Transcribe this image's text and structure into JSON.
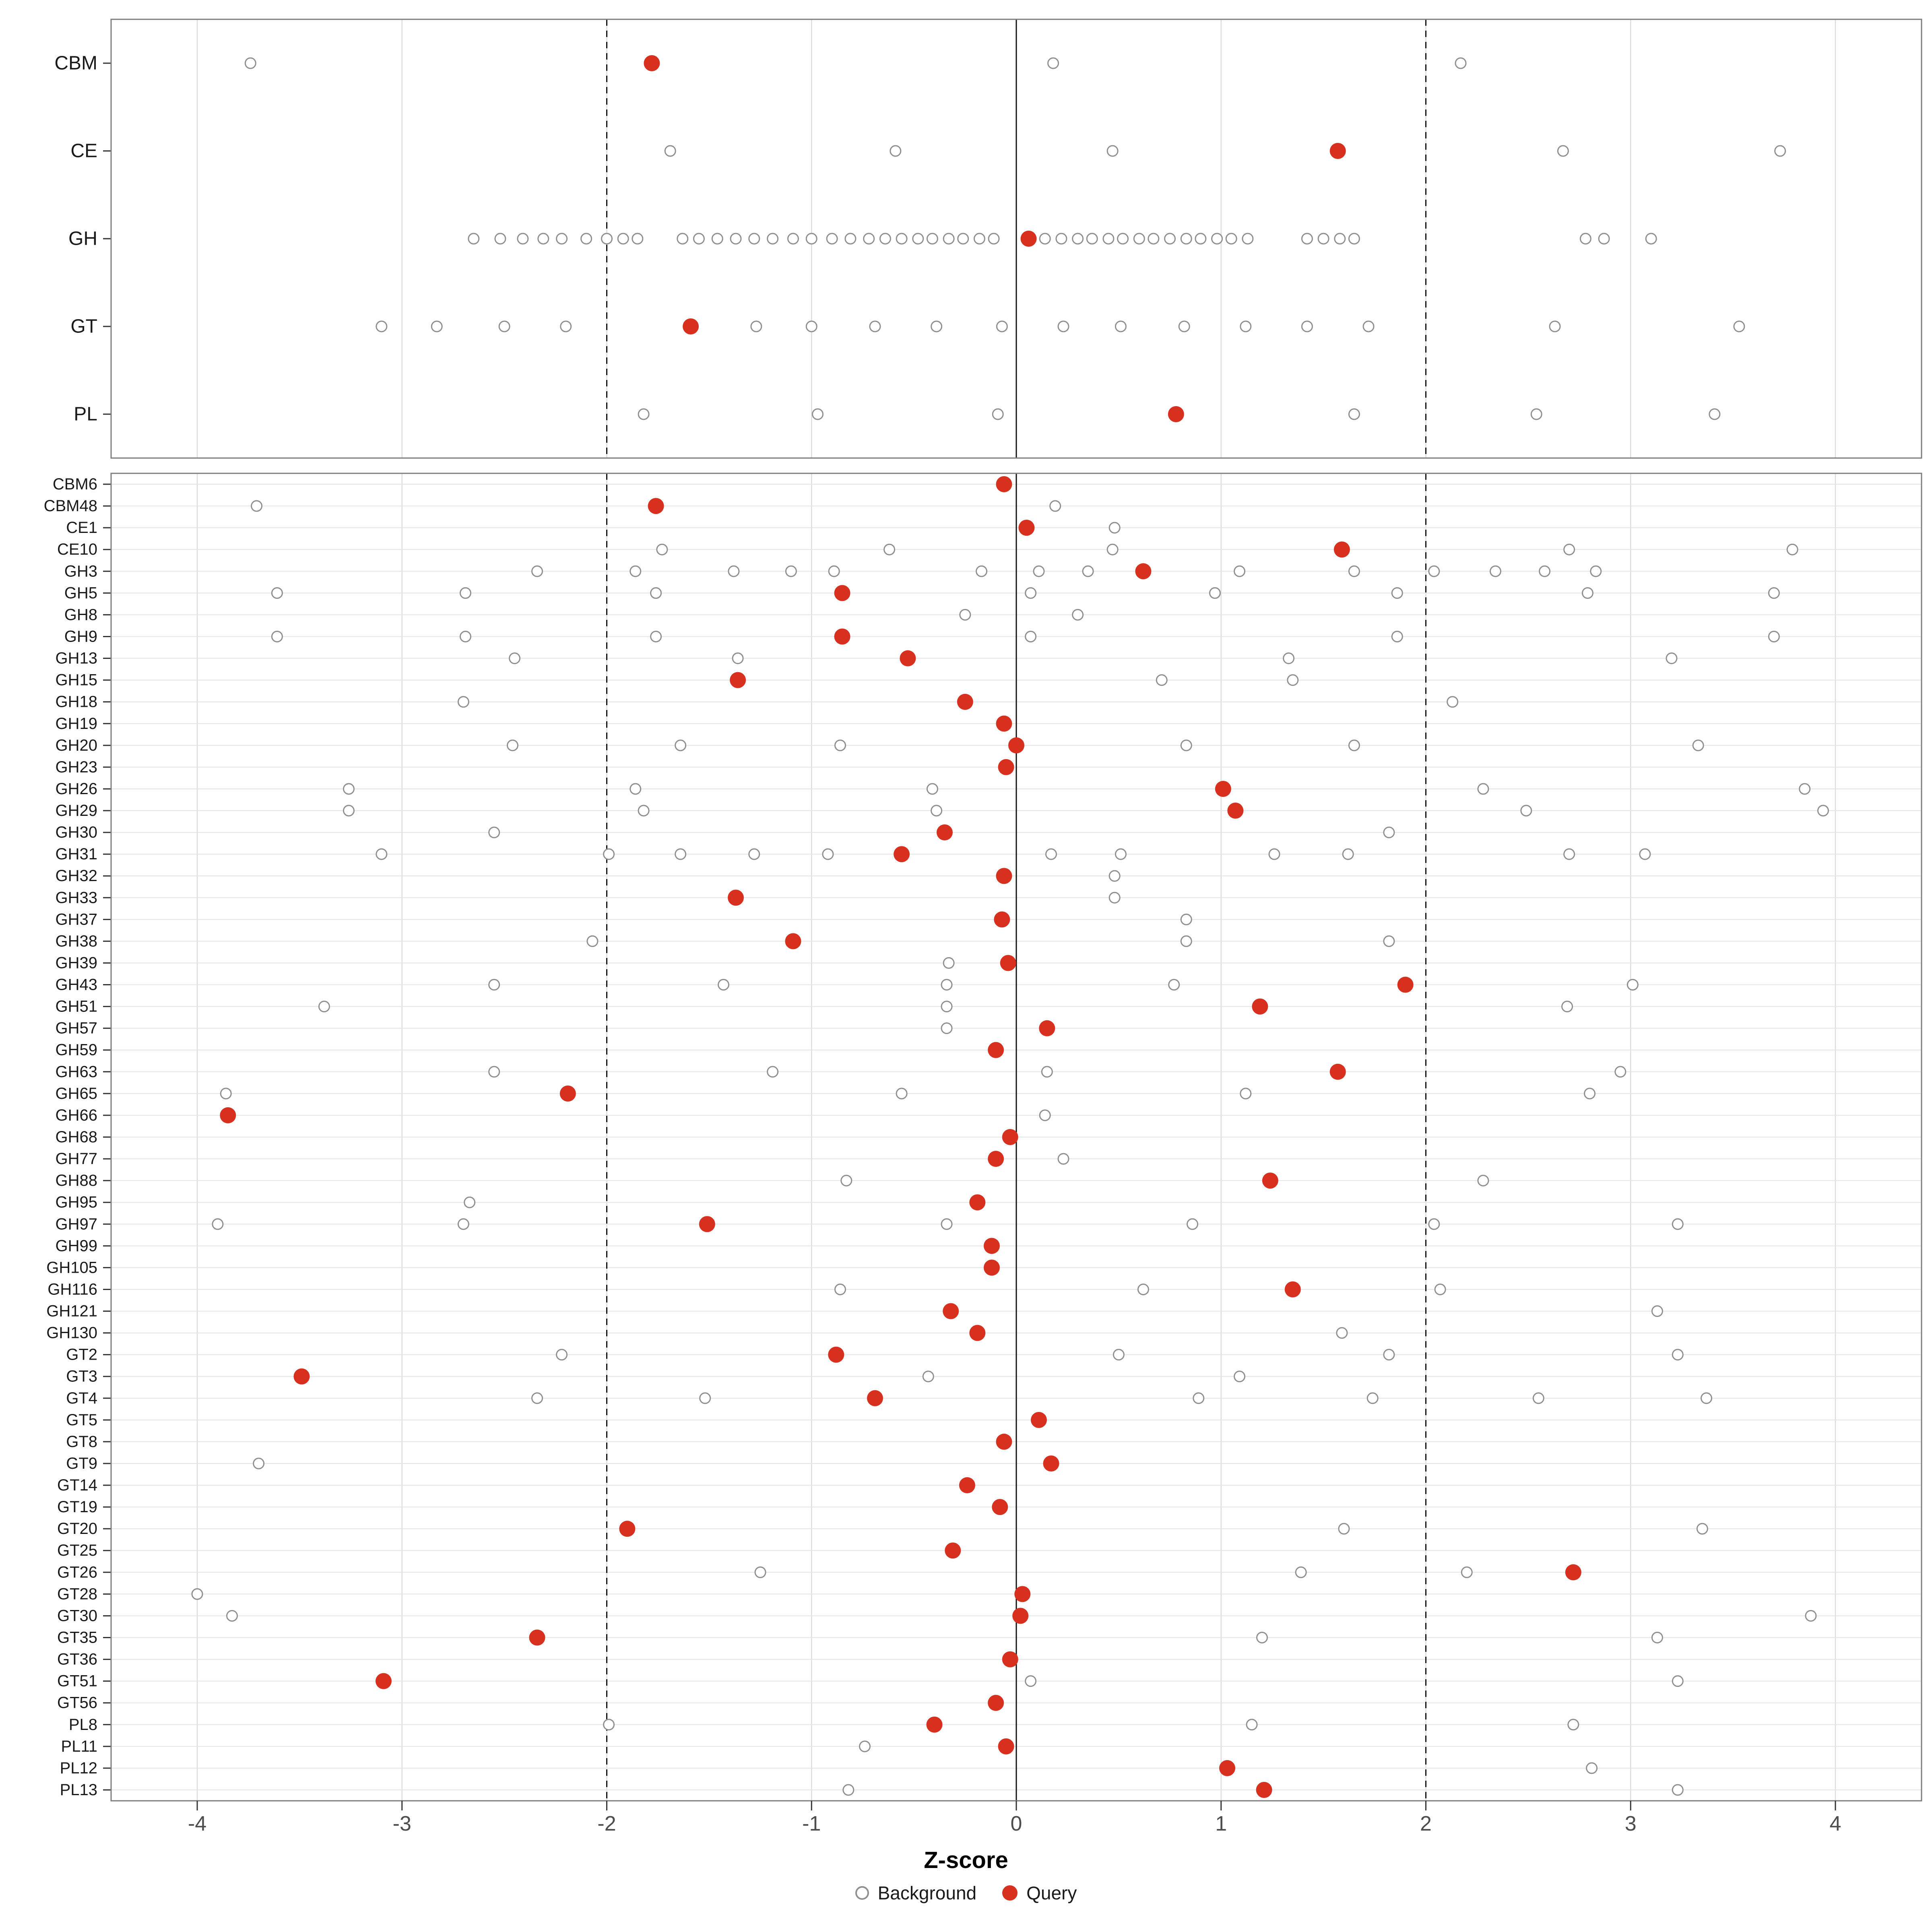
{
  "chart_data": {
    "type": "scatter",
    "title": "",
    "xlabel": "Z-score",
    "ylabel": "",
    "xlim": [
      -4.42,
      4.42
    ],
    "x_ticks": [
      -4,
      -3,
      -2,
      -1,
      0,
      1,
      2,
      3,
      4
    ],
    "x_tick_labels": [
      "-4",
      "-3",
      "-2",
      "-1",
      "0",
      "1",
      "2",
      "3",
      "4"
    ],
    "grid": true,
    "legend_position": "bottom",
    "reference_lines": {
      "solid": [
        0
      ],
      "dashed": [
        -2,
        2
      ]
    },
    "legend": [
      {
        "label": "Background",
        "style": "open-circle"
      },
      {
        "label": "Query",
        "style": "filled-circle"
      }
    ],
    "colors": {
      "query": "#d7301f",
      "background_stroke": "#8f8f8f",
      "grid": "#dcdcdc",
      "panel_border": "#7d7d7d"
    },
    "panels": [
      {
        "name": "family-class-summary",
        "rows": [
          {
            "label": "CBM",
            "query": -1.78,
            "background": [
              -3.74,
              0.18,
              2.17
            ]
          },
          {
            "label": "CE",
            "query": 1.57,
            "background": [
              -1.69,
              -0.59,
              0.47,
              2.67,
              3.73
            ]
          },
          {
            "label": "GH",
            "query": 0.06,
            "background": [
              -2.65,
              -2.52,
              -2.41,
              -2.31,
              -2.22,
              -2.1,
              -2.0,
              -1.92,
              -1.85,
              -1.63,
              -1.55,
              -1.46,
              -1.37,
              -1.28,
              -1.19,
              -1.09,
              -1.0,
              -0.9,
              -0.81,
              -0.72,
              -0.64,
              -0.56,
              -0.48,
              -0.41,
              -0.33,
              -0.26,
              -0.18,
              -0.11,
              0.14,
              0.22,
              0.3,
              0.37,
              0.45,
              0.52,
              0.6,
              0.67,
              0.75,
              0.83,
              0.9,
              0.98,
              1.05,
              1.13,
              1.42,
              1.5,
              1.58,
              1.65,
              2.78,
              2.87,
              3.1
            ]
          },
          {
            "label": "GT",
            "query": -1.59,
            "background": [
              -3.1,
              -2.83,
              -2.5,
              -2.2,
              -1.27,
              -1.0,
              -0.69,
              -0.39,
              -0.07,
              0.23,
              0.51,
              0.82,
              1.12,
              1.42,
              1.72,
              2.63,
              3.53
            ]
          },
          {
            "label": "PL",
            "query": 0.78,
            "background": [
              -1.82,
              -0.97,
              -0.09,
              1.65,
              2.54,
              3.41
            ]
          }
        ]
      },
      {
        "name": "family-detail",
        "rows": [
          {
            "label": "CBM6",
            "query": -0.06,
            "background": []
          },
          {
            "label": "CBM48",
            "query": -1.76,
            "background": [
              -3.71,
              0.19
            ]
          },
          {
            "label": "CE1",
            "query": 0.05,
            "background": [
              0.48
            ]
          },
          {
            "label": "CE10",
            "query": 1.59,
            "background": [
              -1.73,
              -0.62,
              0.47,
              2.7,
              3.79
            ]
          },
          {
            "label": "GH3",
            "query": 0.62,
            "background": [
              -2.34,
              -1.86,
              -1.38,
              -1.1,
              -0.89,
              -0.17,
              0.11,
              0.35,
              1.09,
              1.65,
              2.04,
              2.34,
              2.58,
              2.83
            ]
          },
          {
            "label": "GH5",
            "query": -0.85,
            "background": [
              -3.61,
              -2.69,
              -1.76,
              0.07,
              0.97,
              1.86,
              2.79,
              3.7
            ]
          },
          {
            "label": "GH8",
            "query": null,
            "background": [
              -0.25,
              0.3
            ]
          },
          {
            "label": "GH9",
            "query": -0.85,
            "background": [
              -3.61,
              -2.69,
              -1.76,
              0.07,
              1.86,
              3.7
            ]
          },
          {
            "label": "GH13",
            "query": -0.53,
            "background": [
              -2.45,
              -1.36,
              1.33,
              3.2
            ]
          },
          {
            "label": "GH15",
            "query": -1.36,
            "background": [
              0.71,
              1.35
            ]
          },
          {
            "label": "GH18",
            "query": -0.25,
            "background": [
              -2.7,
              2.13
            ]
          },
          {
            "label": "GH19",
            "query": -0.06,
            "background": []
          },
          {
            "label": "GH20",
            "query": 0.0,
            "background": [
              -2.46,
              -1.64,
              -0.86,
              0.83,
              1.65,
              3.33
            ]
          },
          {
            "label": "GH23",
            "query": -0.05,
            "background": []
          },
          {
            "label": "GH26",
            "query": 1.01,
            "background": [
              -3.26,
              -1.86,
              -0.41,
              2.28,
              3.85
            ]
          },
          {
            "label": "GH29",
            "query": 1.07,
            "background": [
              -3.26,
              -1.82,
              -0.39,
              2.49,
              3.94
            ]
          },
          {
            "label": "GH30",
            "query": -0.35,
            "background": [
              -2.55,
              1.82
            ]
          },
          {
            "label": "GH31",
            "query": -0.56,
            "background": [
              -3.1,
              -1.99,
              -1.64,
              -1.28,
              -0.92,
              0.17,
              0.51,
              1.26,
              1.62,
              2.7,
              3.07
            ]
          },
          {
            "label": "GH32",
            "query": -0.06,
            "background": [
              0.48
            ]
          },
          {
            "label": "GH33",
            "query": -1.37,
            "background": [
              0.48
            ]
          },
          {
            "label": "GH37",
            "query": -0.07,
            "background": [
              0.83
            ]
          },
          {
            "label": "GH38",
            "query": -1.09,
            "background": [
              -2.07,
              0.83,
              1.82
            ]
          },
          {
            "label": "GH39",
            "query": -0.04,
            "background": [
              -0.33
            ]
          },
          {
            "label": "GH43",
            "query": 1.9,
            "background": [
              -2.55,
              -1.43,
              -0.34,
              0.77,
              3.01
            ]
          },
          {
            "label": "GH51",
            "query": 1.19,
            "background": [
              -3.38,
              -0.34,
              2.69
            ]
          },
          {
            "label": "GH57",
            "query": 0.15,
            "background": [
              -0.34
            ]
          },
          {
            "label": "GH59",
            "query": -0.1,
            "background": []
          },
          {
            "label": "GH63",
            "query": 1.57,
            "background": [
              -2.55,
              -1.19,
              0.15,
              2.95
            ]
          },
          {
            "label": "GH65",
            "query": -2.19,
            "background": [
              -3.86,
              -0.56,
              1.12,
              2.8
            ]
          },
          {
            "label": "GH66",
            "query": -3.85,
            "background": [
              0.14
            ]
          },
          {
            "label": "GH68",
            "query": -0.03,
            "background": []
          },
          {
            "label": "GH77",
            "query": -0.1,
            "background": [
              0.23
            ]
          },
          {
            "label": "GH88",
            "query": 1.24,
            "background": [
              -0.83,
              2.28
            ]
          },
          {
            "label": "GH95",
            "query": -0.19,
            "background": [
              -2.67
            ]
          },
          {
            "label": "GH97",
            "query": -1.51,
            "background": [
              -3.9,
              -2.7,
              -0.34,
              0.86,
              2.04,
              3.23
            ]
          },
          {
            "label": "GH99",
            "query": -0.12,
            "background": []
          },
          {
            "label": "GH105",
            "query": -0.12,
            "background": []
          },
          {
            "label": "GH116",
            "query": 1.35,
            "background": [
              -0.86,
              0.62,
              2.07
            ]
          },
          {
            "label": "GH121",
            "query": -0.32,
            "background": [
              3.13
            ]
          },
          {
            "label": "GH130",
            "query": -0.19,
            "background": [
              1.59
            ]
          },
          {
            "label": "GT2",
            "query": -0.88,
            "background": [
              -2.22,
              0.5,
              1.82,
              3.23
            ]
          },
          {
            "label": "GT3",
            "query": -3.49,
            "background": [
              -0.43,
              1.09
            ]
          },
          {
            "label": "GT4",
            "query": -0.69,
            "background": [
              -2.34,
              -1.52,
              0.89,
              1.74,
              2.55,
              3.37
            ]
          },
          {
            "label": "GT5",
            "query": 0.11,
            "background": []
          },
          {
            "label": "GT8",
            "query": -0.06,
            "background": []
          },
          {
            "label": "GT9",
            "query": 0.17,
            "background": [
              -3.7
            ]
          },
          {
            "label": "GT14",
            "query": -0.24,
            "background": []
          },
          {
            "label": "GT19",
            "query": -0.08,
            "background": []
          },
          {
            "label": "GT20",
            "query": -1.9,
            "background": [
              1.6,
              3.35
            ]
          },
          {
            "label": "GT25",
            "query": -0.31,
            "background": []
          },
          {
            "label": "GT26",
            "query": 2.72,
            "background": [
              -1.25,
              1.39,
              2.2
            ]
          },
          {
            "label": "GT28",
            "query": 0.03,
            "background": [
              -4.0
            ]
          },
          {
            "label": "GT30",
            "query": 0.02,
            "background": [
              -3.83,
              3.88
            ]
          },
          {
            "label": "GT35",
            "query": -2.34,
            "background": [
              1.2,
              3.13
            ]
          },
          {
            "label": "GT36",
            "query": -0.03,
            "background": []
          },
          {
            "label": "GT51",
            "query": -3.09,
            "background": [
              0.07,
              3.23
            ]
          },
          {
            "label": "GT56",
            "query": -0.1,
            "background": []
          },
          {
            "label": "PL8",
            "query": -0.4,
            "background": [
              -1.99,
              1.15,
              2.72
            ]
          },
          {
            "label": "PL11",
            "query": -0.05,
            "background": [
              -0.74
            ]
          },
          {
            "label": "PL12",
            "query": 1.03,
            "background": [
              2.81
            ]
          },
          {
            "label": "PL13",
            "query": 1.21,
            "background": [
              -0.82,
              3.23
            ]
          }
        ]
      }
    ]
  }
}
